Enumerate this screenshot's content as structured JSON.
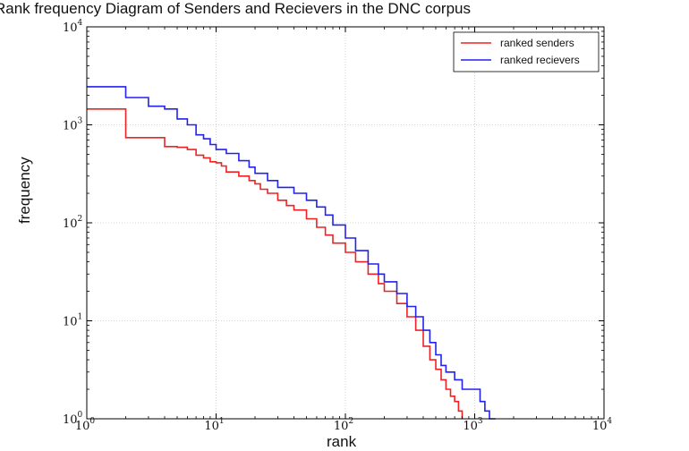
{
  "chart_data": {
    "type": "line",
    "title": "Rank frequency Diagram of Senders and Recievers in the DNC corpus",
    "xlabel": "rank",
    "ylabel": "frequency",
    "x_scale": "log",
    "y_scale": "log",
    "xlim": [
      1,
      10000
    ],
    "ylim": [
      1,
      10000
    ],
    "grid": true,
    "legend_position": "top-right",
    "x_ticks": [
      {
        "value": 1,
        "base": "10",
        "exp": "0"
      },
      {
        "value": 10,
        "base": "10",
        "exp": "1"
      },
      {
        "value": 100,
        "base": "10",
        "exp": "2"
      },
      {
        "value": 1000,
        "base": "10",
        "exp": "3"
      },
      {
        "value": 10000,
        "base": "10",
        "exp": "4"
      }
    ],
    "y_ticks": [
      {
        "value": 1,
        "base": "10",
        "exp": "0"
      },
      {
        "value": 10,
        "base": "10",
        "exp": "1"
      },
      {
        "value": 100,
        "base": "10",
        "exp": "2"
      },
      {
        "value": 1000,
        "base": "10",
        "exp": "3"
      },
      {
        "value": 10000,
        "base": "10",
        "exp": "4"
      }
    ],
    "series": [
      {
        "name": "ranked senders",
        "color": "#ee2222",
        "points": [
          [
            1,
            1450
          ],
          [
            2,
            740
          ],
          [
            3,
            740
          ],
          [
            4,
            600
          ],
          [
            5,
            590
          ],
          [
            6,
            560
          ],
          [
            7,
            490
          ],
          [
            8,
            460
          ],
          [
            9,
            420
          ],
          [
            10,
            410
          ],
          [
            11,
            380
          ],
          [
            12,
            330
          ],
          [
            15,
            300
          ],
          [
            18,
            270
          ],
          [
            20,
            250
          ],
          [
            22,
            220
          ],
          [
            25,
            200
          ],
          [
            30,
            170
          ],
          [
            35,
            150
          ],
          [
            40,
            135
          ],
          [
            50,
            110
          ],
          [
            60,
            90
          ],
          [
            70,
            75
          ],
          [
            80,
            62
          ],
          [
            100,
            50
          ],
          [
            120,
            40
          ],
          [
            150,
            30
          ],
          [
            180,
            24
          ],
          [
            200,
            20
          ],
          [
            250,
            15
          ],
          [
            300,
            11
          ],
          [
            350,
            8
          ],
          [
            400,
            5.5
          ],
          [
            450,
            4
          ],
          [
            500,
            3.2
          ],
          [
            550,
            2.5
          ],
          [
            600,
            2.0
          ],
          [
            650,
            1.7
          ],
          [
            700,
            1.5
          ],
          [
            750,
            1.2
          ],
          [
            800,
            1
          ]
        ]
      },
      {
        "name": "ranked recievers",
        "color": "#2222ee",
        "points": [
          [
            1,
            2450
          ],
          [
            2,
            1900
          ],
          [
            3,
            1550
          ],
          [
            4,
            1450
          ],
          [
            5,
            1150
          ],
          [
            6,
            1000
          ],
          [
            7,
            790
          ],
          [
            8,
            720
          ],
          [
            9,
            630
          ],
          [
            10,
            560
          ],
          [
            12,
            510
          ],
          [
            15,
            430
          ],
          [
            18,
            370
          ],
          [
            20,
            320
          ],
          [
            25,
            270
          ],
          [
            30,
            230
          ],
          [
            40,
            200
          ],
          [
            50,
            170
          ],
          [
            60,
            145
          ],
          [
            70,
            120
          ],
          [
            80,
            95
          ],
          [
            100,
            70
          ],
          [
            120,
            52
          ],
          [
            150,
            38
          ],
          [
            180,
            30
          ],
          [
            200,
            25
          ],
          [
            250,
            19
          ],
          [
            300,
            14
          ],
          [
            350,
            11
          ],
          [
            400,
            8
          ],
          [
            450,
            6
          ],
          [
            500,
            4.5
          ],
          [
            550,
            3.5
          ],
          [
            600,
            3
          ],
          [
            700,
            2.5
          ],
          [
            800,
            2
          ],
          [
            900,
            2
          ],
          [
            1000,
            2
          ],
          [
            1100,
            1.5
          ],
          [
            1200,
            1.2
          ],
          [
            1300,
            1
          ],
          [
            1450,
            1
          ]
        ]
      }
    ]
  }
}
